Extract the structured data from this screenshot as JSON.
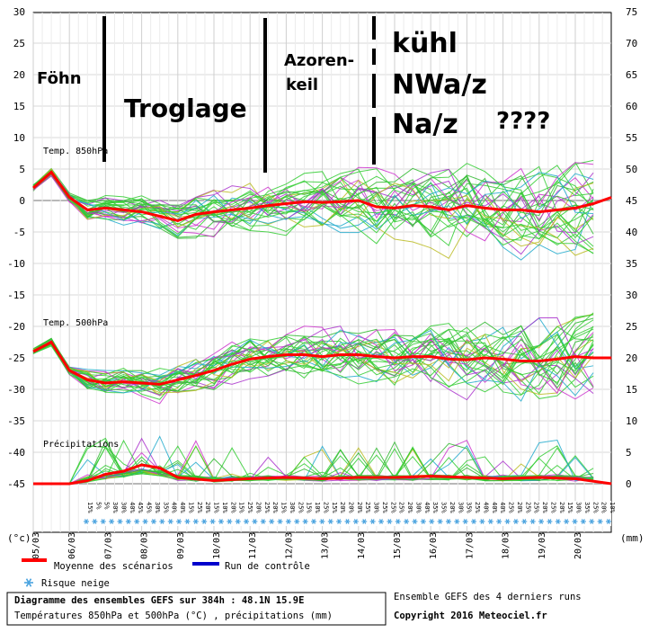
{
  "chart_data": {
    "type": "line",
    "title": "Diagramme des ensembles GEFS sur 384h : 48.1N 15.9E",
    "subtitle": "Températures 850hPa et 500hPa (°C) , précipitations (mm)",
    "left_axis_unit": "(°c)",
    "right_axis_unit": "(mm)",
    "left_ticks": [
      30,
      25,
      20,
      15,
      10,
      5,
      0,
      -5,
      -10,
      -15,
      -20,
      -25,
      -30,
      -35,
      -40,
      -45
    ],
    "right_ticks": [
      75,
      70,
      65,
      60,
      55,
      50,
      45,
      40,
      35,
      30,
      25,
      20,
      15,
      10,
      5,
      0
    ],
    "ylim": [
      -45,
      30
    ],
    "x_dates": [
      "05/03",
      "06/03",
      "07/03",
      "08/03",
      "09/03",
      "10/03",
      "11/03",
      "12/03",
      "13/03",
      "14/03",
      "15/03",
      "16/03",
      "17/03",
      "18/03",
      "19/03",
      "20/03"
    ],
    "panel_labels": {
      "t850": "Temp. 850hPa",
      "t500": "Temp. 500hPa",
      "precip": "Précipitations"
    },
    "series": [
      {
        "name": "Moyenne des scénarios",
        "panel": "Temp. 850hPa",
        "color": "#ff0000",
        "x": [
          0,
          0.5,
          1,
          1.5,
          2,
          2.5,
          3,
          3.5,
          4,
          4.5,
          5,
          5.5,
          6,
          6.5,
          7,
          7.5,
          8,
          8.5,
          9,
          9.5,
          10,
          10.5,
          11,
          11.5,
          12,
          12.5,
          13,
          13.5,
          14,
          14.5,
          15,
          15.5,
          16
        ],
        "values": [
          2,
          4.5,
          0.5,
          -1.5,
          -1.2,
          -1.5,
          -1.8,
          -2.5,
          -3.2,
          -2.2,
          -1.8,
          -1.5,
          -1.2,
          -0.8,
          -0.5,
          -0.2,
          -0.3,
          -0.2,
          0,
          -1,
          -1.2,
          -0.8,
          -1,
          -1.5,
          -0.8,
          -1.2,
          -1.5,
          -1.5,
          -1.8,
          -1.5,
          -1.2,
          -0.5,
          0.5
        ]
      },
      {
        "name": "Moyenne des scénarios",
        "panel": "Temp. 500hPa",
        "color": "#ff0000",
        "x": [
          0,
          0.5,
          1,
          1.5,
          2,
          2.5,
          3,
          3.5,
          4,
          4.5,
          5,
          5.5,
          6,
          6.5,
          7,
          7.5,
          8,
          8.5,
          9,
          9.5,
          10,
          10.5,
          11,
          11.5,
          12,
          12.5,
          13,
          13.5,
          14,
          14.5,
          15,
          15.5,
          16
        ],
        "values": [
          -24,
          -22.5,
          -27,
          -28.5,
          -29,
          -28.8,
          -29,
          -29.2,
          -28.5,
          -27.8,
          -27,
          -26,
          -25.2,
          -24.8,
          -24.5,
          -24.5,
          -24.8,
          -24.5,
          -24.5,
          -24.8,
          -25,
          -24.8,
          -24.8,
          -25.2,
          -25.3,
          -25,
          -25.2,
          -25.5,
          -25.5,
          -25.2,
          -24.8,
          -25,
          -25
        ]
      },
      {
        "name": "Moyenne des scénarios",
        "panel": "Précipitations",
        "color": "#ff0000",
        "x": [
          0,
          1,
          1.5,
          2,
          2.5,
          3,
          3.5,
          4,
          5,
          6,
          7,
          8,
          9,
          10,
          11,
          12,
          13,
          14,
          15,
          16
        ],
        "values": [
          0,
          0,
          0.5,
          1.5,
          2,
          3,
          2.5,
          1,
          0.5,
          0.8,
          1,
          0.8,
          1,
          1,
          1.2,
          1,
          0.8,
          1,
          0.8,
          0
        ]
      }
    ],
    "snow_risk_percent": [
      "15%",
      "5%",
      "5%",
      "30%",
      "30%",
      "40%",
      "45%",
      "45%",
      "30%",
      "35%",
      "40%",
      "40%",
      "15%",
      "25%",
      "20%",
      "15%",
      "10%",
      "20%",
      "15%",
      "25%",
      "20%",
      "25%",
      "20%",
      "15%",
      "30%",
      "25%",
      "15%",
      "10%",
      "25%",
      "15%",
      "20%",
      "20%",
      "20%",
      "25%",
      "30%",
      "25%",
      "25%",
      "25%",
      "20%",
      "30%",
      "40%",
      "35%",
      "35%",
      "20%",
      "30%",
      "35%",
      "25%",
      "40%",
      "40%",
      "40%",
      "25%",
      "20%",
      "25%",
      "25%",
      "20%",
      "25%",
      "20%",
      "15%",
      "30%",
      "35%",
      "25%",
      "20%",
      "10%"
    ],
    "legend": [
      {
        "label": "Moyenne des scénarios",
        "color": "#ff0000"
      },
      {
        "label": "Run de contrôle",
        "color": "#0000cc"
      },
      {
        "label": "Risque neige",
        "color": "#4aa3df"
      }
    ],
    "annotations": [
      "Föhn",
      "Troglage",
      "Azoren-",
      "keil",
      "kühl",
      "NWa/z",
      "Na/z",
      "????"
    ],
    "footer": {
      "runs": "Ensemble GEFS des 4 derniers runs",
      "copyright": "Copyright 2016 Meteociel.fr"
    }
  }
}
